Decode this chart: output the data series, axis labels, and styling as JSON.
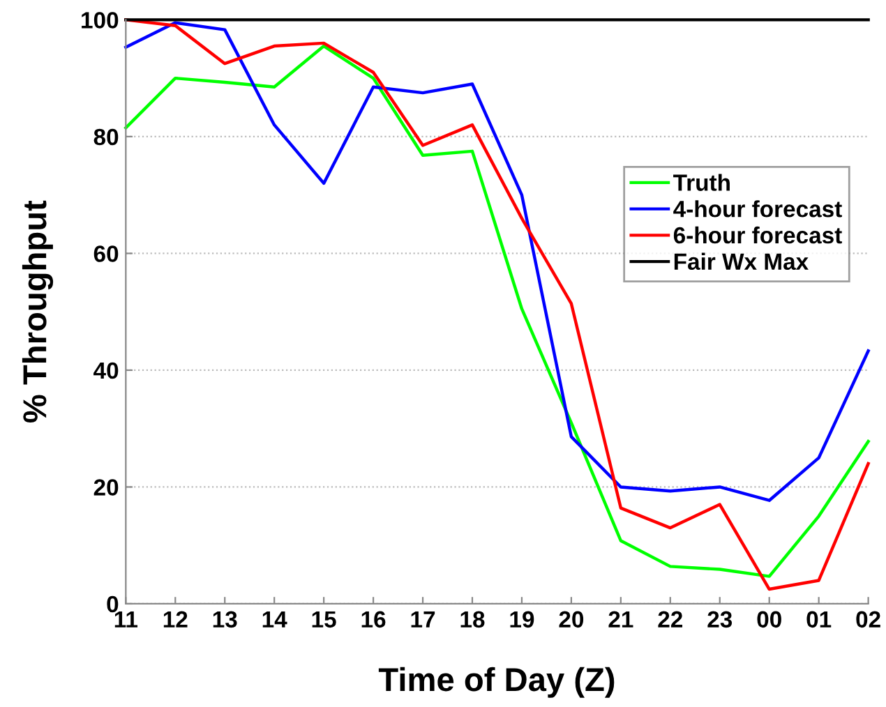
{
  "chart_data": {
    "type": "line",
    "xlabel": "Time of Day (Z)",
    "ylabel": "% Throughput",
    "categories": [
      "11",
      "12",
      "13",
      "14",
      "15",
      "16",
      "17",
      "18",
      "19",
      "20",
      "21",
      "22",
      "23",
      "00",
      "01",
      "02"
    ],
    "ylim": [
      0,
      100
    ],
    "yticks": [
      0,
      20,
      40,
      60,
      80,
      100
    ],
    "grid": "y",
    "legend": "right",
    "marker": "none",
    "line_style": "solid",
    "series": [
      {
        "name": "Truth",
        "color": "#00ff00",
        "values": [
          81.5,
          90,
          89.3,
          88.5,
          95.5,
          90,
          76.8,
          77.5,
          50.5,
          31,
          10.8,
          6.4,
          5.9,
          4.7,
          15,
          27.8
        ]
      },
      {
        "name": "4-hour forecast",
        "color": "#0000ff",
        "values": [
          95.3,
          99.5,
          98.3,
          82,
          72,
          88.5,
          87.5,
          89,
          70,
          28.6,
          20,
          19.3,
          20,
          17.7,
          25,
          43.3
        ]
      },
      {
        "name": "6-hour forecast",
        "color": "#ff0000",
        "values": [
          100,
          99,
          92.5,
          95.5,
          96,
          91,
          78.5,
          82,
          66,
          51.4,
          16.4,
          13,
          17,
          2.5,
          4,
          24
        ]
      },
      {
        "name": "Fair Wx Max",
        "color": "#000000",
        "values": [
          100,
          100,
          100,
          100,
          100,
          100,
          100,
          100,
          100,
          100,
          100,
          100,
          100,
          100,
          100,
          100
        ]
      }
    ]
  }
}
